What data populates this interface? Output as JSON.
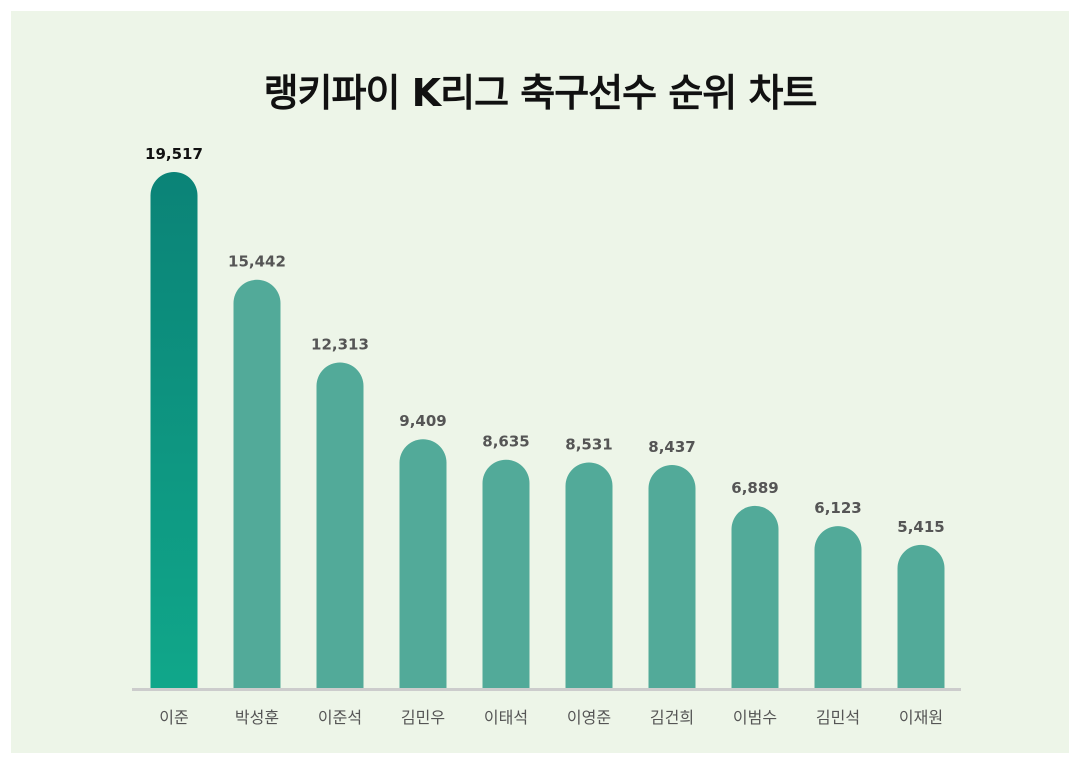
{
  "chart_data": {
    "type": "bar",
    "title": "랭키파이 K리그 축구선수 순위 차트",
    "categories": [
      "이준",
      "박성훈",
      "이준석",
      "김민우",
      "이태석",
      "이영준",
      "김건희",
      "이범수",
      "김민석",
      "이재원"
    ],
    "values": [
      19517,
      15442,
      12313,
      9409,
      8635,
      8531,
      8437,
      6889,
      6123,
      5415
    ],
    "value_labels": [
      "19,517",
      "15,442",
      "12,313",
      "9,409",
      "8,635",
      "8,531",
      "8,437",
      "6,889",
      "6,123",
      "5,415"
    ],
    "xlabel": "",
    "ylabel": "",
    "ylim": [
      0,
      19517
    ],
    "grid": false,
    "legend": "none",
    "colors": {
      "background": "#edf5e8",
      "bar": "#52aa99",
      "top_bar_start": "#0b8377",
      "top_bar_end": "#10a78a",
      "baseline": "#cccccc"
    }
  }
}
